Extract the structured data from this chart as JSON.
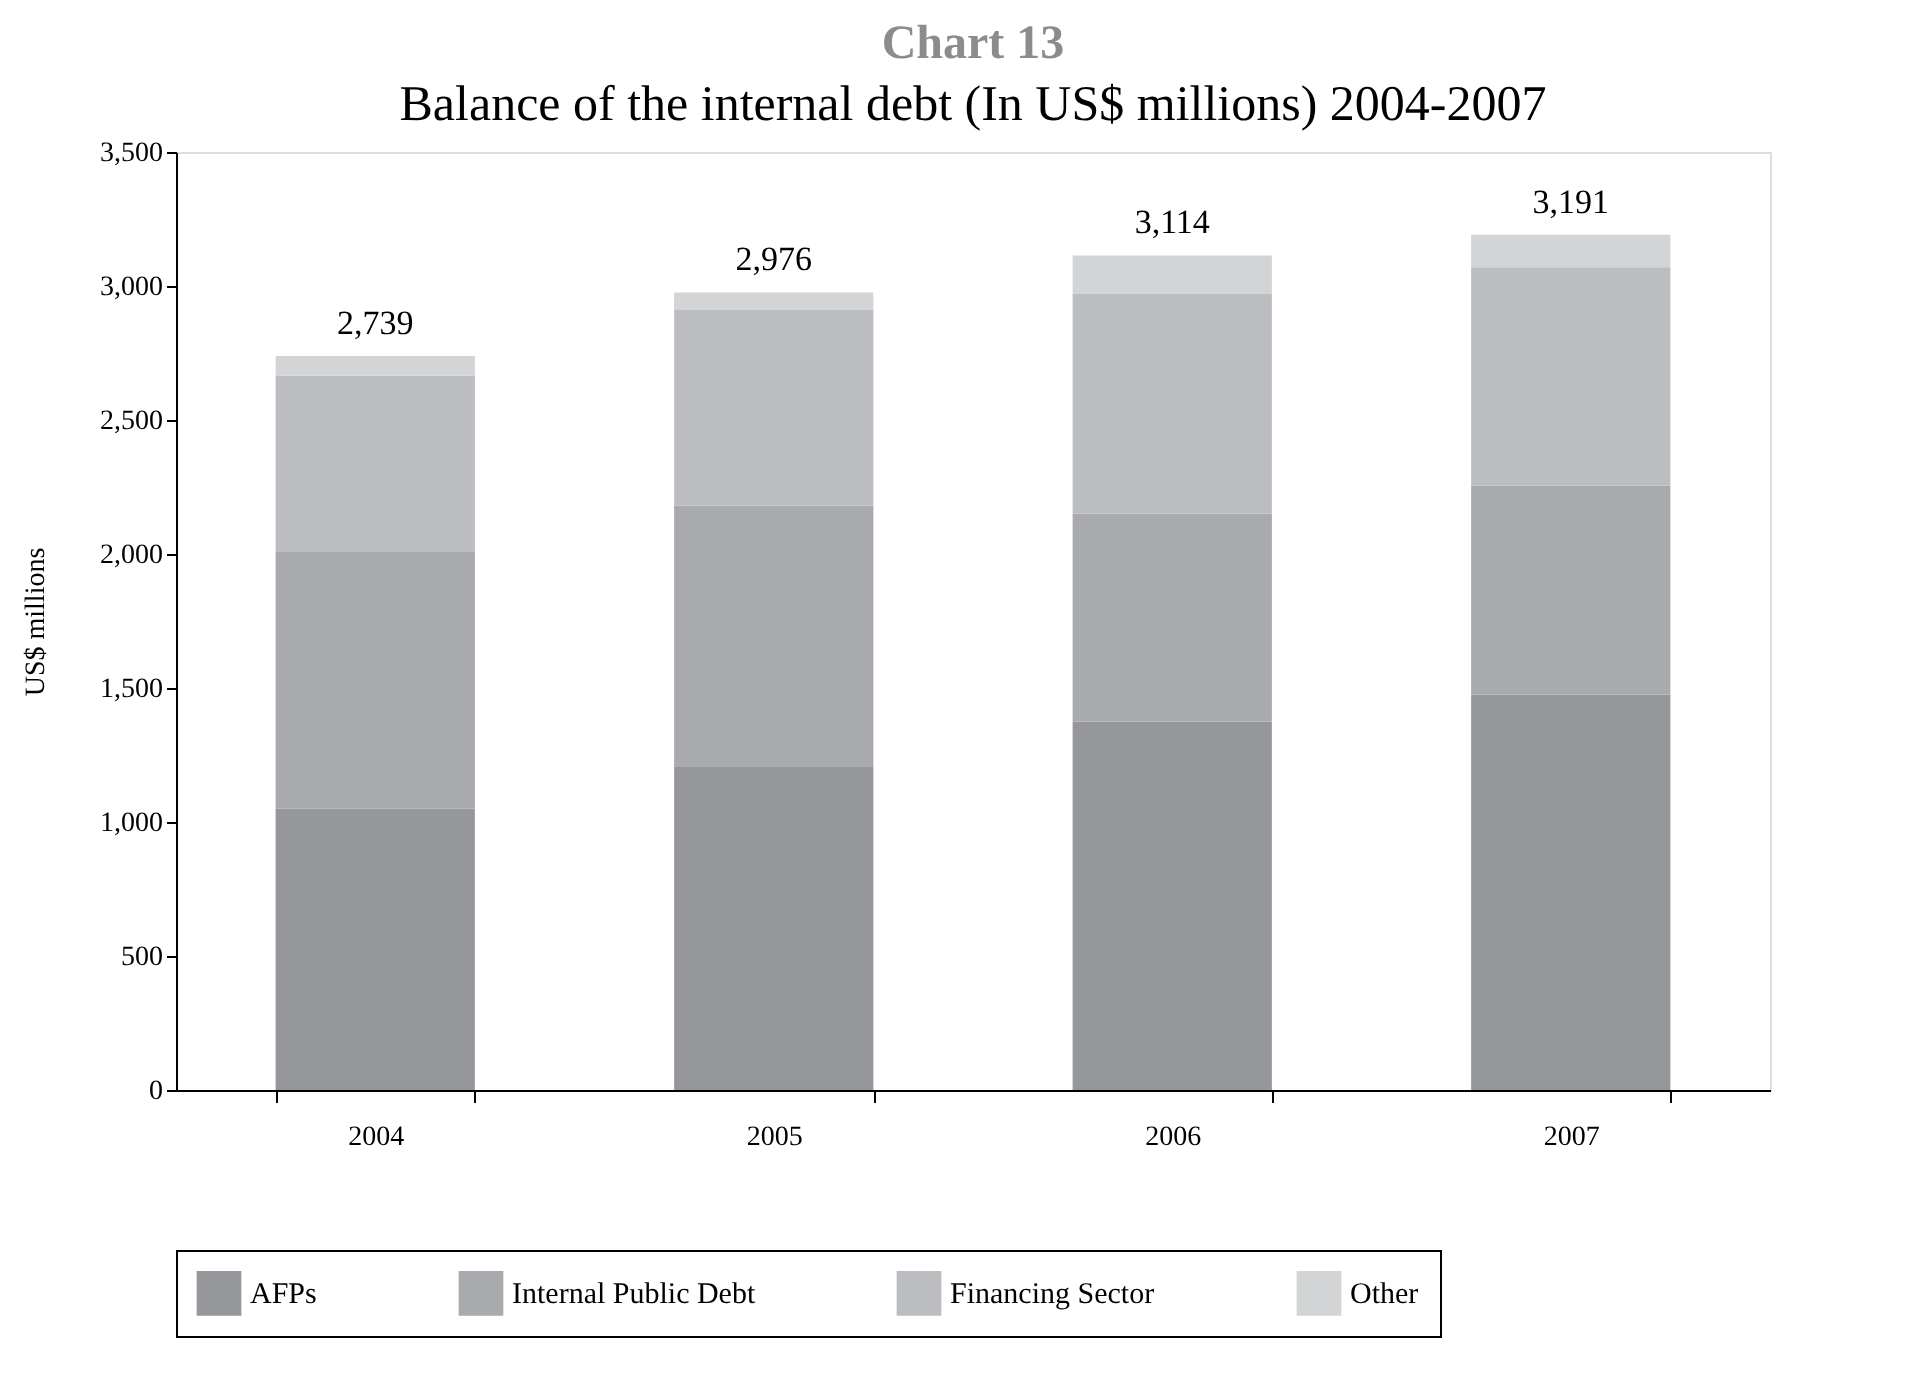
{
  "chart_data": {
    "type": "bar",
    "title": "Chart 13",
    "subtitle": "Balance of the internal debt (In US$ millions) 2004-2007",
    "ylabel": "US$ millions",
    "categories": [
      "2004",
      "2005",
      "2006",
      "2007"
    ],
    "stacked": true,
    "series": [
      {
        "name": "AFPs",
        "color": "#96979b",
        "values": [
          1050,
          1205,
          1375,
          1475
        ]
      },
      {
        "name": "Internal Public Debt",
        "color": "#a9aaad",
        "values": [
          960,
          975,
          775,
          780
        ]
      },
      {
        "name": "Financing Sector",
        "color": "#bcbdc1",
        "values": [
          655,
          730,
          820,
          815
        ]
      },
      {
        "name": "Other",
        "color": "#d3d4d6",
        "values": [
          74,
          66,
          144,
          121
        ]
      }
    ],
    "totals": [
      "2,739",
      "2,976",
      "3,114",
      "3,191"
    ],
    "ylim": [
      0,
      3500
    ],
    "yticks": [
      0,
      500,
      {
        "value": 1000,
        "label": "1,000"
      },
      {
        "value": 1500,
        "label": "1,500"
      },
      {
        "value": 2000,
        "label": "2,000"
      },
      {
        "value": 2500,
        "label": "2,500"
      },
      {
        "value": 3000,
        "label": "3,000"
      },
      {
        "value": 3500,
        "label": "3,500"
      }
    ],
    "grid": false,
    "legend": "bottom"
  }
}
